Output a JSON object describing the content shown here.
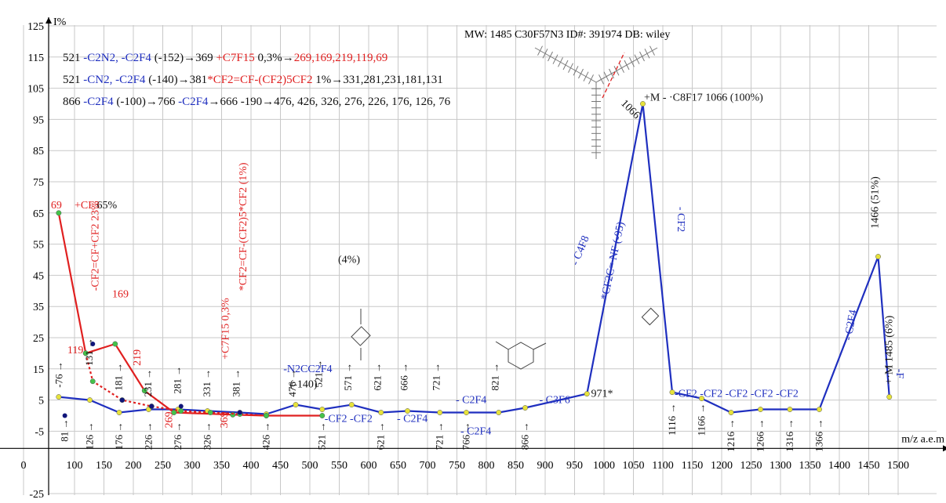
{
  "chart_data": {
    "type": "line",
    "title": "MW: 1485 C30F57N3 ID#: 391974 DB: wiley",
    "ylabel": "I%",
    "xlabel": "m/z a.e.m",
    "xlim": [
      0,
      1520
    ],
    "ylim": [
      -28,
      128
    ],
    "x_ticks": [
      0,
      100,
      150,
      200,
      250,
      300,
      350,
      400,
      450,
      500,
      550,
      600,
      650,
      700,
      750,
      800,
      850,
      900,
      950,
      1000,
      1050,
      1100,
      1150,
      1200,
      1250,
      1300,
      1350,
      1400,
      1450,
      1500
    ],
    "y_ticks": [
      -25,
      -5,
      5,
      15,
      25,
      35,
      45,
      55,
      65,
      75,
      85,
      95,
      105,
      115,
      125
    ],
    "grid": true,
    "series": [
      {
        "color": "#1f2fbf",
        "points": [
          [
            69,
            6
          ],
          [
            126,
            5
          ],
          [
            176,
            1
          ],
          [
            226,
            2
          ],
          [
            276,
            2
          ],
          [
            326,
            1.5
          ],
          [
            381,
            1
          ],
          [
            426,
            0.5
          ],
          [
            476,
            3.5
          ],
          [
            521,
            2
          ],
          [
            571,
            3.5
          ],
          [
            621,
            1
          ],
          [
            666,
            1.5
          ],
          [
            721,
            1
          ],
          [
            766,
            1
          ],
          [
            821,
            1
          ],
          [
            866,
            2.5
          ],
          [
            971,
            7
          ],
          [
            1066,
            100
          ],
          [
            1116,
            7.5
          ],
          [
            1166,
            5.5
          ],
          [
            1216,
            1
          ],
          [
            1266,
            2
          ],
          [
            1316,
            2
          ],
          [
            1366,
            2
          ],
          [
            1466,
            51
          ],
          [
            1485,
            6
          ]
        ]
      },
      {
        "color": "#e02020",
        "points": [
          [
            69,
            65
          ],
          [
            119,
            20
          ],
          [
            169,
            23
          ],
          [
            219,
            8
          ],
          [
            269,
            1
          ],
          [
            369,
            0.3
          ],
          [
            426,
            0
          ],
          [
            521,
            0
          ]
        ]
      },
      {
        "color": "#e02020",
        "dashed": true,
        "points": [
          [
            119,
            20
          ],
          [
            131,
            11
          ],
          [
            181,
            5
          ],
          [
            231,
            3
          ],
          [
            281,
            1.5
          ],
          [
            331,
            1
          ],
          [
            381,
            0.5
          ],
          [
            426,
            0
          ]
        ]
      }
    ],
    "navy_markers": [
      [
        81,
        0
      ],
      [
        131,
        23
      ],
      [
        181,
        5
      ],
      [
        231,
        3
      ],
      [
        281,
        3
      ],
      [
        381,
        1
      ]
    ],
    "header_lines": [
      [
        [
          "blk",
          "521 "
        ],
        [
          "blu",
          "-C2N2, -C2F4"
        ],
        [
          "blk",
          " (-152)→369 "
        ],
        [
          "red",
          "+C7F15"
        ],
        [
          "blk",
          " 0,3%→"
        ],
        [
          "red",
          "269,169,219,119,69"
        ]
      ],
      [
        [
          "blk",
          "521 "
        ],
        [
          "blu",
          "-CN2, -C2F4"
        ],
        [
          "blk",
          " (-140)→381"
        ],
        [
          "red",
          "*CF2=CF-(CF2)5CF2"
        ],
        [
          "blk",
          " 1%→331,281,231,181,131"
        ]
      ],
      [
        [
          "blk",
          "866 "
        ],
        [
          "blu",
          "-C2F4"
        ],
        [
          "blk",
          " (-100)→766 "
        ],
        [
          "blu",
          "-C2F4"
        ],
        [
          "blk",
          "→666 -190→476, 426, 326, 276, 226, 176, 126, 76"
        ]
      ]
    ],
    "annotations": [
      {
        "text": "69 ",
        "cls": "red",
        "x": 69,
        "y": 66.5,
        "dx": -10
      },
      {
        "text": "+CF3",
        "cls": "red",
        "x": 100,
        "y": 66.5
      },
      {
        "text": "65%",
        "cls": "blk",
        "x": 138,
        "y": 66.5
      },
      {
        "text": "119",
        "cls": "red",
        "x": 86,
        "y": 20
      },
      {
        "text": "169",
        "cls": "red",
        "x": 164,
        "y": 38
      },
      {
        "text": "219",
        "cls": "red",
        "x": 212,
        "y": 16,
        "rot": -90
      },
      {
        "text": "269",
        "cls": "red",
        "x": 266,
        "y": -4,
        "rot": -90
      },
      {
        "text": "369",
        "cls": "red",
        "x": 360,
        "y": -4,
        "rot": -90
      },
      {
        "text": "-CF2=CF+CF2 23%",
        "cls": "red",
        "x": 141,
        "y": 40,
        "rot": -90
      },
      {
        "text": "+C7F15 0,3%",
        "cls": "red",
        "x": 362,
        "y": 18,
        "rot": -90
      },
      {
        "text": "*CF2=CF-(CF2)5*CF2 (1%)",
        "cls": "red",
        "x": 392,
        "y": 40,
        "rot": -90
      },
      {
        "text": "-N2CC2F4",
        "cls": "blu",
        "x": 455,
        "y": 14
      },
      {
        "text": "(-140)",
        "cls": "blk",
        "x": 466,
        "y": 9
      },
      {
        "text": "(4%)",
        "cls": "blk",
        "x": 548,
        "y": 49
      },
      {
        "text": "- C4F8",
        "cls": "blu",
        "x": 955,
        "y": 48,
        "rot": -68
      },
      {
        "text": "- *CF2C= NF (-95)",
        "cls": "blu",
        "x": 1004,
        "y": 35,
        "rot": -78
      },
      {
        "text": "- CF2",
        "cls": "blu",
        "x": 1125,
        "y": 67,
        "rot": 90
      },
      {
        "text": "- C2F4",
        "cls": "blu",
        "x": 1420,
        "y": 24,
        "rot": -80
      },
      {
        "text": "-F",
        "cls": "blu",
        "x": 1497,
        "y": 15,
        "rot": 90
      },
      {
        "text": "+M - ·C8F17 1066 (100%)",
        "cls": "blk",
        "x": 1068,
        "y": 101
      },
      {
        "text": "1466 (51%)",
        "cls": "blk",
        "x": 1466,
        "y": 60,
        "rot": -90
      },
      {
        "text": "+·M 1485 (6%)",
        "cls": "blk",
        "x": 1490,
        "y": 10,
        "rot": -90
      },
      {
        "text": "971*",
        "cls": "blk",
        "x": 978,
        "y": 6
      },
      {
        "text": "1066",
        "cls": "blk",
        "x": 1028,
        "y": 100,
        "rot": 45
      },
      {
        "text": "- C2F4",
        "cls": "blu",
        "x": 748,
        "y": 4
      },
      {
        "text": "- C3F6",
        "cls": "blu",
        "x": 890,
        "y": 4
      },
      {
        "text": "-CF2 -CF2",
        "cls": "blu",
        "x": 525,
        "y": -2
      },
      {
        "text": "- C2F4",
        "cls": "blu",
        "x": 648,
        "y": -2
      },
      {
        "text": "- C2F4",
        "cls": "blu",
        "x": 756,
        "y": -6
      },
      {
        "text": "-CF2 -CF2 -CF2 -CF2 -CF2",
        "cls": "blu",
        "x": 1120,
        "y": 6
      }
    ],
    "peak_labels_above": [
      {
        "text": "-76",
        "x": 76,
        "y": 9
      },
      {
        "text": "131",
        "x": 131,
        "y": 16
      },
      {
        "text": "181",
        "x": 181,
        "y": 8
      },
      {
        "text": "231",
        "x": 231,
        "y": 6
      },
      {
        "text": "281",
        "x": 281,
        "y": 7
      },
      {
        "text": "331",
        "x": 331,
        "y": 6
      },
      {
        "text": "381",
        "x": 381,
        "y": 6
      },
      {
        "text": "476",
        "x": 476,
        "y": 6
      },
      {
        "text": "521",
        "x": 521,
        "y": 9
      },
      {
        "text": "571",
        "x": 571,
        "y": 8
      },
      {
        "text": "621",
        "x": 621,
        "y": 8
      },
      {
        "text": "666",
        "x": 666,
        "y": 8
      },
      {
        "text": "721",
        "x": 721,
        "y": 8
      },
      {
        "text": "821",
        "x": 821,
        "y": 8
      }
    ],
    "peak_labels_below": [
      {
        "text": "81",
        "x": 81,
        "y": -1
      },
      {
        "text": "126",
        "x": 126,
        "y": -2
      },
      {
        "text": "176",
        "x": 176,
        "y": -2
      },
      {
        "text": "226",
        "x": 226,
        "y": -2
      },
      {
        "text": "276",
        "x": 276,
        "y": -2
      },
      {
        "text": "326",
        "x": 326,
        "y": -2
      },
      {
        "text": "426",
        "x": 426,
        "y": -2
      },
      {
        "text": "521",
        "x": 521,
        "y": -2
      },
      {
        "text": "621",
        "x": 621,
        "y": -2
      },
      {
        "text": "721",
        "x": 721,
        "y": -2
      },
      {
        "text": "766",
        "x": 766,
        "y": -2
      },
      {
        "text": "866",
        "x": 866,
        "y": -2
      },
      {
        "text": "1116",
        "x": 1116,
        "y": 4
      },
      {
        "text": "1166",
        "x": 1166,
        "y": 4
      },
      {
        "text": "1216",
        "x": 1216,
        "y": -1
      },
      {
        "text": "1266",
        "x": 1266,
        "y": -1
      },
      {
        "text": "1316",
        "x": 1316,
        "y": -1
      },
      {
        "text": "1366",
        "x": 1366,
        "y": -1
      }
    ]
  }
}
